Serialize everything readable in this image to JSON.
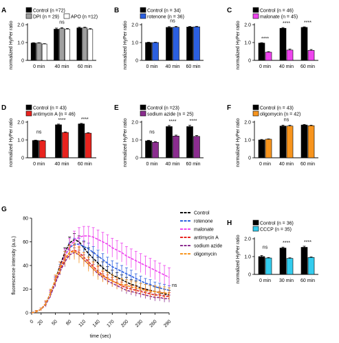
{
  "chart_data": [
    {
      "panel": "A",
      "type": "bar",
      "ylabel": "normalized HyPer ratio",
      "ylim": [
        0,
        2.0
      ],
      "yticks": [
        0,
        1.0,
        2.0
      ],
      "categories": [
        "0 min",
        "40 min",
        "60 min"
      ],
      "series": [
        {
          "name": "Control (n =72)",
          "color": "#000000",
          "values": [
            0.97,
            1.75,
            1.82
          ],
          "errors": [
            0.02,
            0.06,
            0.04
          ]
        },
        {
          "name": "DPI (n = 29)",
          "color": "#a0a0a0",
          "values": [
            0.97,
            1.78,
            1.82
          ],
          "errors": [
            0.02,
            0.05,
            0.04
          ]
        },
        {
          "name": "APO (n =12)",
          "color": "#ffffff",
          "values": [
            0.92,
            1.75,
            1.74
          ],
          "errors": [
            0.02,
            0.04,
            0.04
          ]
        }
      ],
      "annotations": [
        "",
        "ns",
        ""
      ]
    },
    {
      "panel": "B",
      "type": "bar",
      "ylabel": "normalized HyPer ratio",
      "ylim": [
        0,
        2.0
      ],
      "yticks": [
        0,
        1.0,
        2.0
      ],
      "categories": [
        "0 min",
        "40 min",
        "60 min"
      ],
      "series": [
        {
          "name": "Control (n = 34)",
          "color": "#000000",
          "values": [
            1.0,
            1.85,
            1.87
          ],
          "errors": [
            0.02,
            0.04,
            0.03
          ]
        },
        {
          "name": "rotenone (n = 36)",
          "color": "#2b5fe0",
          "values": [
            1.0,
            1.86,
            1.88
          ],
          "errors": [
            0.02,
            0.04,
            0.03
          ]
        }
      ],
      "annotations": [
        "",
        "ns",
        ""
      ]
    },
    {
      "panel": "C",
      "type": "bar",
      "ylabel": "normalized HyPer ratio",
      "ylim": [
        0,
        2.0
      ],
      "yticks": [
        0,
        1.0,
        2.0
      ],
      "categories": [
        "0 min",
        "40 min",
        "60 min"
      ],
      "series": [
        {
          "name": "Control (n = 46)",
          "color": "#000000",
          "values": [
            0.97,
            1.8,
            1.85
          ],
          "errors": [
            0.02,
            0.04,
            0.03
          ]
        },
        {
          "name": "malonate (n = 45)",
          "color": "#ee44ee",
          "values": [
            0.46,
            0.58,
            0.56
          ],
          "errors": [
            0.03,
            0.05,
            0.05
          ]
        }
      ],
      "annotations": [
        "****",
        "****",
        "****"
      ]
    },
    {
      "panel": "D",
      "type": "bar",
      "ylabel": "normalized HyPer ratio",
      "ylim": [
        0,
        2.0
      ],
      "yticks": [
        0,
        1.0,
        2.0
      ],
      "categories": [
        "0 min",
        "40 min",
        "60 min"
      ],
      "series": [
        {
          "name": "Control (n = 43)",
          "color": "#000000",
          "values": [
            0.97,
            1.85,
            1.9
          ],
          "errors": [
            0.02,
            0.04,
            0.03
          ]
        },
        {
          "name": "antimycin A (n = 46)",
          "color": "#e8231e",
          "values": [
            0.96,
            1.42,
            1.38
          ],
          "errors": [
            0.02,
            0.03,
            0.03
          ]
        }
      ],
      "annotations": [
        "ns",
        "****",
        "****"
      ]
    },
    {
      "panel": "E",
      "type": "bar",
      "ylabel": "normalized HyPer ratio",
      "ylim": [
        0,
        2.0
      ],
      "yticks": [
        0,
        1.0,
        2.0
      ],
      "categories": [
        "0 min",
        "40 min",
        "60 min"
      ],
      "series": [
        {
          "name": "Control (n =23)",
          "color": "#000000",
          "values": [
            0.95,
            1.75,
            1.75
          ],
          "errors": [
            0.03,
            0.06,
            0.07
          ]
        },
        {
          "name": "sodium azide (n = 25)",
          "color": "#8b2d8f",
          "values": [
            0.87,
            1.22,
            1.2
          ],
          "errors": [
            0.03,
            0.05,
            0.05
          ]
        }
      ],
      "annotations": [
        "ns",
        "****",
        "****"
      ]
    },
    {
      "panel": "F",
      "type": "bar",
      "ylabel": "normalized HyPer ratio",
      "ylim": [
        0,
        2.0
      ],
      "yticks": [
        0,
        1.0,
        2.0
      ],
      "categories": [
        "0 min",
        "40 min",
        "60 min"
      ],
      "series": [
        {
          "name": "Control (n = 43)",
          "color": "#000000",
          "values": [
            1.0,
            1.78,
            1.84
          ],
          "errors": [
            0.03,
            0.05,
            0.03
          ]
        },
        {
          "name": "oligomycin (n = 42)",
          "color": "#f7941d",
          "values": [
            1.04,
            1.78,
            1.8
          ],
          "errors": [
            0.02,
            0.04,
            0.03
          ]
        }
      ],
      "annotations": [
        "",
        "ns",
        ""
      ]
    },
    {
      "panel": "G",
      "type": "line",
      "xlabel": "time (sec)",
      "ylabel": "fluorescence intensity (a.u.)",
      "xlim": [
        0,
        290
      ],
      "ylim": [
        0,
        80
      ],
      "xticks": [
        0,
        20,
        50,
        80,
        110,
        140,
        170,
        200,
        230,
        260,
        290
      ],
      "yticks": [
        0,
        20,
        40,
        60,
        80
      ],
      "x": [
        0,
        10,
        20,
        30,
        40,
        50,
        60,
        70,
        80,
        90,
        100,
        110,
        120,
        130,
        140,
        150,
        160,
        170,
        180,
        190,
        200,
        210,
        220,
        230,
        240,
        250,
        260,
        270,
        280,
        290
      ],
      "series": [
        {
          "name": "Control",
          "color": "#000000",
          "values": [
            0,
            1,
            3,
            8,
            17,
            28,
            40,
            51,
            59,
            62,
            60,
            55,
            50,
            46,
            42,
            38,
            35,
            32,
            30,
            28,
            26,
            24,
            23,
            21,
            20,
            19,
            18,
            17,
            16,
            15
          ],
          "errors": [
            0,
            1,
            1,
            2,
            2,
            3,
            3,
            4,
            5,
            5,
            5,
            5,
            5,
            5,
            5,
            5,
            4,
            4,
            4,
            4,
            4,
            4,
            4,
            4,
            4,
            4,
            4,
            4,
            4,
            4
          ]
        },
        {
          "name": "rotenone",
          "color": "#2b5fe0",
          "values": [
            0,
            1,
            3,
            8,
            17,
            27,
            38,
            48,
            55,
            58,
            58,
            56,
            54,
            51,
            48,
            45,
            42,
            39,
            37,
            35,
            33,
            31,
            29,
            27,
            25,
            24,
            22,
            21,
            20,
            19
          ],
          "errors": [
            0,
            1,
            1,
            2,
            2,
            3,
            3,
            4,
            4,
            5,
            5,
            5,
            5,
            5,
            5,
            5,
            5,
            5,
            5,
            5,
            5,
            5,
            4,
            4,
            4,
            4,
            4,
            4,
            4,
            4
          ]
        },
        {
          "name": "malonate",
          "color": "#ee44ee",
          "values": [
            0,
            1,
            3,
            8,
            16,
            27,
            38,
            48,
            56,
            61,
            64,
            65,
            65,
            64,
            62,
            60,
            58,
            55,
            53,
            51,
            48,
            46,
            44,
            42,
            40,
            38,
            36,
            34,
            32,
            30
          ],
          "errors": [
            0,
            1,
            1,
            2,
            3,
            4,
            5,
            6,
            7,
            8,
            8,
            8,
            8,
            8,
            8,
            8,
            8,
            8,
            8,
            8,
            8,
            8,
            8,
            8,
            8,
            8,
            8,
            8,
            8,
            8
          ]
        },
        {
          "name": "antimycin A",
          "color": "#e8231e",
          "values": [
            0,
            1,
            3,
            8,
            16,
            26,
            36,
            45,
            51,
            53,
            51,
            47,
            43,
            39,
            35,
            32,
            29,
            27,
            25,
            23,
            21,
            20,
            19,
            18,
            17,
            16,
            15,
            15,
            14,
            14
          ],
          "errors": [
            0,
            1,
            1,
            2,
            2,
            3,
            3,
            4,
            4,
            4,
            4,
            4,
            4,
            4,
            4,
            3,
            3,
            3,
            3,
            3,
            3,
            3,
            3,
            3,
            3,
            3,
            3,
            3,
            3,
            3
          ]
        },
        {
          "name": "sodium azide",
          "color": "#8b2d8f",
          "values": [
            0,
            1,
            3,
            7,
            15,
            25,
            35,
            43,
            49,
            51,
            49,
            45,
            41,
            37,
            33,
            30,
            27,
            25,
            23,
            21,
            19,
            18,
            17,
            16,
            15,
            14,
            13,
            13,
            12,
            12
          ],
          "errors": [
            0,
            1,
            1,
            2,
            2,
            3,
            3,
            4,
            4,
            4,
            4,
            4,
            4,
            4,
            3,
            3,
            3,
            3,
            3,
            3,
            3,
            3,
            3,
            3,
            3,
            3,
            3,
            3,
            3,
            3
          ]
        },
        {
          "name": "oligomycin",
          "color": "#f7941d",
          "values": [
            0,
            1,
            3,
            8,
            17,
            28,
            38,
            46,
            51,
            52,
            49,
            45,
            41,
            37,
            34,
            31,
            29,
            27,
            25,
            24,
            23,
            22,
            21,
            20,
            19,
            18,
            18,
            17,
            17,
            16
          ],
          "errors": [
            0,
            1,
            1,
            2,
            3,
            4,
            5,
            6,
            6,
            7,
            7,
            6,
            6,
            6,
            6,
            5,
            5,
            5,
            5,
            5,
            5,
            5,
            5,
            5,
            5,
            5,
            5,
            5,
            5,
            5
          ]
        }
      ],
      "annotations": [
        "ns"
      ]
    },
    {
      "panel": "H",
      "type": "bar",
      "ylabel": "normalized HyPer ratio",
      "ylim": [
        0,
        2.0
      ],
      "yticks": [
        0,
        1.0,
        2.0
      ],
      "categories": [
        "0 min",
        "30 min",
        "60 min"
      ],
      "series": [
        {
          "name": "Control (n = 36)",
          "color": "#000000",
          "values": [
            1.0,
            1.48,
            1.52
          ],
          "errors": [
            0.06,
            0.05,
            0.06
          ]
        },
        {
          "name": "CCCP (n = 35)",
          "color": "#33ccee",
          "values": [
            0.92,
            0.9,
            0.95
          ],
          "errors": [
            0.03,
            0.03,
            0.03
          ]
        }
      ],
      "annotations": [
        "ns",
        "****",
        "****"
      ]
    }
  ]
}
